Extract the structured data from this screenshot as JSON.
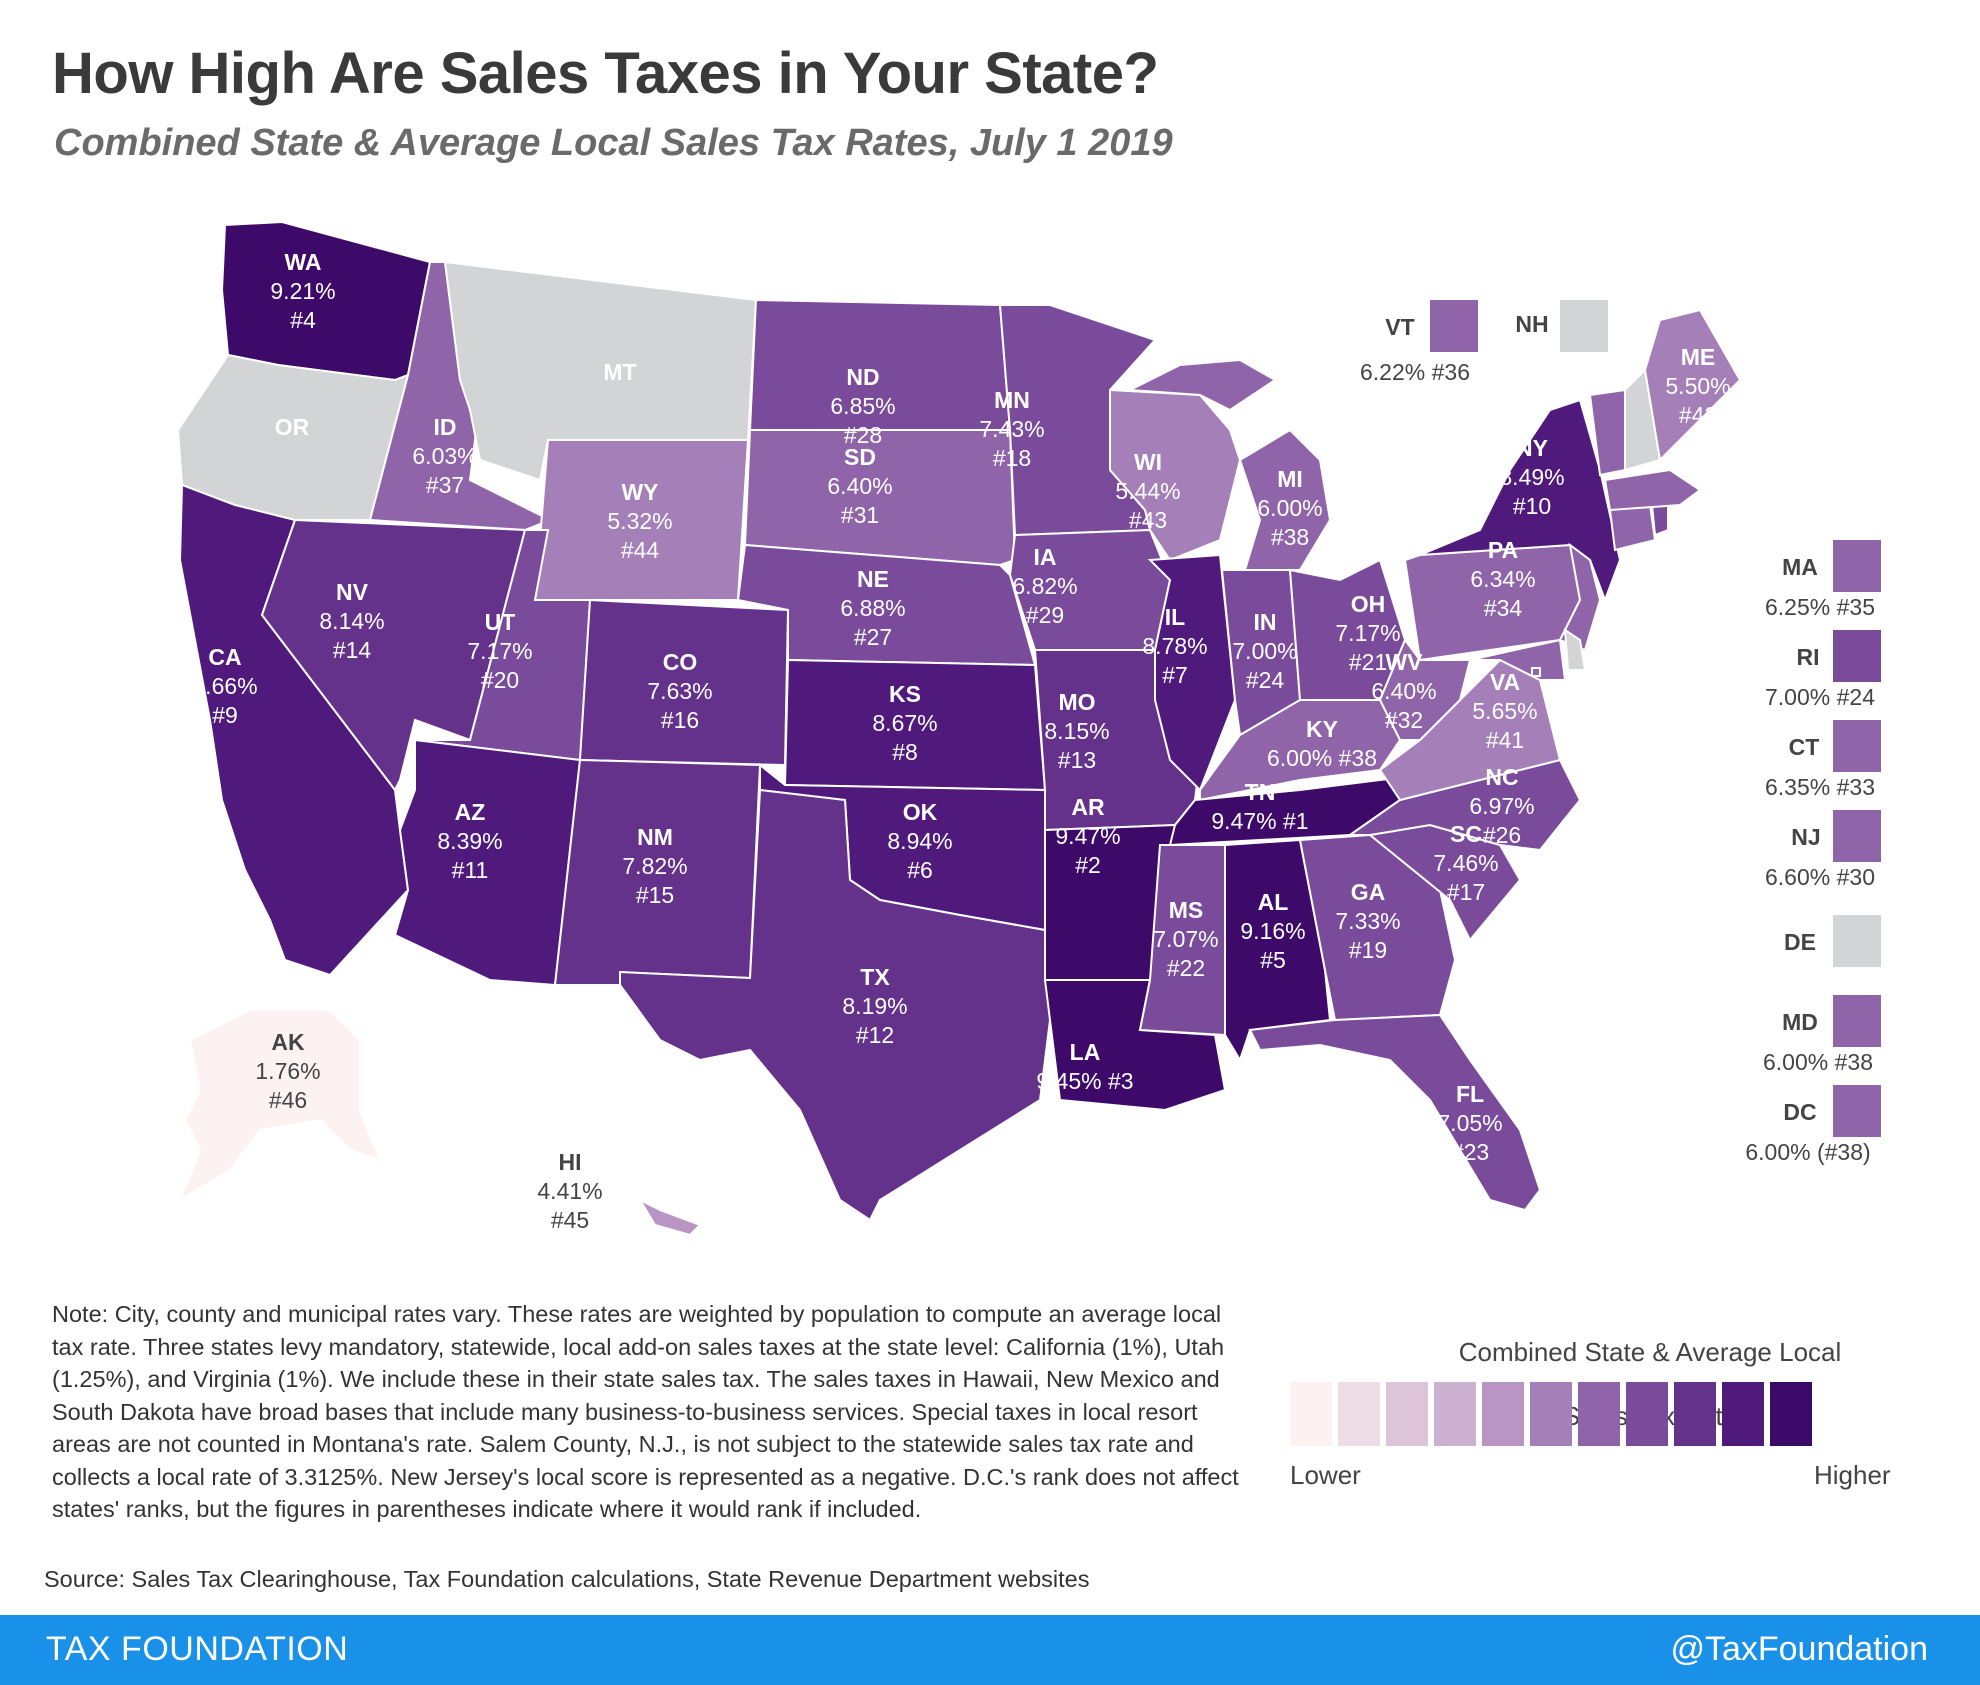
{
  "header": {
    "title": "How High Are Sales Taxes in Your State?",
    "subtitle": "Combined State & Average Local Sales Tax Rates, July 1 2019"
  },
  "colors": {
    "none": "#d3d4d6",
    "scale": [
      "#fdf2f2",
      "#ecdde6",
      "#dcc4d9",
      "#cbb0cf",
      "#b995c3",
      "#a47fb8",
      "#8f64a9",
      "#7a4a9b",
      "#64318b",
      "#4f1a7c",
      "#3d0a6a"
    ]
  },
  "states": {
    "WA": {
      "label": "WA",
      "rate": "9.21%",
      "rank": "#4"
    },
    "OR": {
      "label": "OR",
      "rate": "",
      "rank": ""
    },
    "CA": {
      "label": "CA",
      "rate": "8.66%",
      "rank": "#9"
    },
    "ID": {
      "label": "ID",
      "rate": "6.03%",
      "rank": "#37"
    },
    "NV": {
      "label": "NV",
      "rate": "8.14%",
      "rank": "#14"
    },
    "MT": {
      "label": "MT",
      "rate": "",
      "rank": ""
    },
    "WY": {
      "label": "WY",
      "rate": "5.32%",
      "rank": "#44"
    },
    "UT": {
      "label": "UT",
      "rate": "7.17%",
      "rank": "#20"
    },
    "AZ": {
      "label": "AZ",
      "rate": "8.39%",
      "rank": "#11"
    },
    "CO": {
      "label": "CO",
      "rate": "7.63%",
      "rank": "#16"
    },
    "NM": {
      "label": "NM",
      "rate": "7.82%",
      "rank": "#15"
    },
    "ND": {
      "label": "ND",
      "rate": "6.85%",
      "rank": "#28"
    },
    "SD": {
      "label": "SD",
      "rate": "6.40%",
      "rank": "#31"
    },
    "NE": {
      "label": "NE",
      "rate": "6.88%",
      "rank": "#27"
    },
    "KS": {
      "label": "KS",
      "rate": "8.67%",
      "rank": "#8"
    },
    "OK": {
      "label": "OK",
      "rate": "8.94%",
      "rank": "#6"
    },
    "TX": {
      "label": "TX",
      "rate": "8.19%",
      "rank": "#12"
    },
    "MN": {
      "label": "MN",
      "rate": "7.43%",
      "rank": "#18"
    },
    "IA": {
      "label": "IA",
      "rate": "6.82%",
      "rank": "#29"
    },
    "MO": {
      "label": "MO",
      "rate": "8.15%",
      "rank": "#13"
    },
    "AR": {
      "label": "AR",
      "rate": "9.47%",
      "rank": "#2"
    },
    "LA": {
      "label": "LA",
      "rate": "9.45%",
      "rank": "#3"
    },
    "WI": {
      "label": "WI",
      "rate": "5.44%",
      "rank": "#43"
    },
    "IL": {
      "label": "IL",
      "rate": "8.78%",
      "rank": "#7"
    },
    "MI": {
      "label": "MI",
      "rate": "6.00%",
      "rank": "#38"
    },
    "IN": {
      "label": "IN",
      "rate": "7.00%",
      "rank": "#24"
    },
    "OH": {
      "label": "OH",
      "rate": "7.17%",
      "rank": "#21"
    },
    "KY": {
      "label": "KY",
      "rate": "6.00%",
      "rank": "#38"
    },
    "TN": {
      "label": "TN",
      "rate": "9.47%",
      "rank": "#1"
    },
    "MS": {
      "label": "MS",
      "rate": "7.07%",
      "rank": "#22"
    },
    "AL": {
      "label": "AL",
      "rate": "9.16%",
      "rank": "#5"
    },
    "GA": {
      "label": "GA",
      "rate": "7.33%",
      "rank": "#19"
    },
    "FL": {
      "label": "FL",
      "rate": "7.05%",
      "rank": "#23"
    },
    "SC": {
      "label": "SC",
      "rate": "7.46%",
      "rank": "#17"
    },
    "NC": {
      "label": "NC",
      "rate": "6.97%",
      "rank": "#26"
    },
    "VA": {
      "label": "VA",
      "rate": "5.65%",
      "rank": "#41"
    },
    "WV": {
      "label": "WV",
      "rate": "6.40%",
      "rank": "#32"
    },
    "PA": {
      "label": "PA",
      "rate": "6.34%",
      "rank": "#34"
    },
    "NY": {
      "label": "NY",
      "rate": "8.49%",
      "rank": "#10"
    },
    "ME": {
      "label": "ME",
      "rate": "5.50%",
      "rank": "#42"
    },
    "AK": {
      "label": "AK",
      "rate": "1.76%",
      "rank": "#46"
    },
    "HI": {
      "label": "HI",
      "rate": "4.41%",
      "rank": "#45"
    }
  },
  "callouts": {
    "VT": {
      "label": "VT",
      "value": "6.22% #36"
    },
    "NH": {
      "label": "NH",
      "value": ""
    },
    "MA": {
      "label": "MA",
      "value": "6.25% #35"
    },
    "RI": {
      "label": "RI",
      "value": "7.00% #24"
    },
    "CT": {
      "label": "CT",
      "value": "6.35% #33"
    },
    "NJ": {
      "label": "NJ",
      "value": "6.60% #30"
    },
    "DE": {
      "label": "DE",
      "value": ""
    },
    "MD": {
      "label": "MD",
      "value": "6.00% #38"
    },
    "DC": {
      "label": "DC",
      "value": "6.00% (#38)"
    }
  },
  "legend": {
    "title_line1": "Combined State & Average Local",
    "title_line2": "Sales Tax Rate",
    "low": "Lower",
    "high": "Higher"
  },
  "note": "Note: City, county and municipal rates vary. These rates are weighted by population to compute an average local tax rate. Three states levy mandatory, statewide, local add-on sales taxes at the state level: California (1%), Utah (1.25%), and Virginia (1%). We include these in their state sales tax. The sales taxes in Hawaii, New Mexico and South Dakota have broad bases that include many business-to-business services. Special taxes in local resort areas are not counted in Montana's rate. Salem County, N.J., is not subject to the statewide sales tax rate and collects a local rate of 3.3125%. New Jersey's local score is represented as a negative. D.C.'s rank does not affect states' ranks, but the figures in parentheses indicate where it would rank if included.",
  "source": "Source: Sales Tax Clearinghouse, Tax Foundation calculations, State Revenue Department websites",
  "footer": {
    "left": "TAX FOUNDATION",
    "right": "@TaxFoundation"
  }
}
